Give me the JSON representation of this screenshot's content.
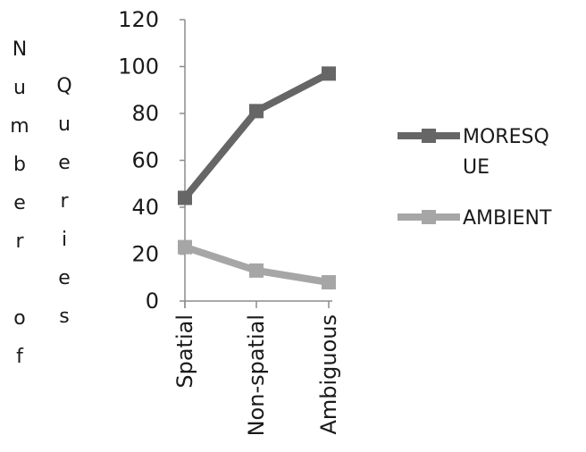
{
  "chart_data": {
    "type": "line",
    "categories": [
      "Spatial",
      "Non-spatial",
      "Ambiguous"
    ],
    "series": [
      {
        "name": "MORESQUE",
        "legend_lines": [
          "MORESQ",
          "UE"
        ],
        "values": [
          44,
          81,
          97
        ],
        "color": "#666666"
      },
      {
        "name": "AMBIENT",
        "legend_lines": [
          "AMBIENT"
        ],
        "values": [
          23,
          13,
          8
        ],
        "color": "#a6a6a6"
      }
    ],
    "ylabel_columns": [
      [
        "N",
        "u",
        "m",
        "b",
        "e",
        "r",
        "",
        "o",
        "f"
      ],
      [
        "Q",
        "u",
        "e",
        "r",
        "i",
        "e",
        "s"
      ]
    ],
    "ylim": [
      0,
      120
    ],
    "yticks": [
      "0",
      "20",
      "40",
      "60",
      "80",
      "100",
      "120"
    ],
    "grid": false,
    "legend_position": "right"
  }
}
